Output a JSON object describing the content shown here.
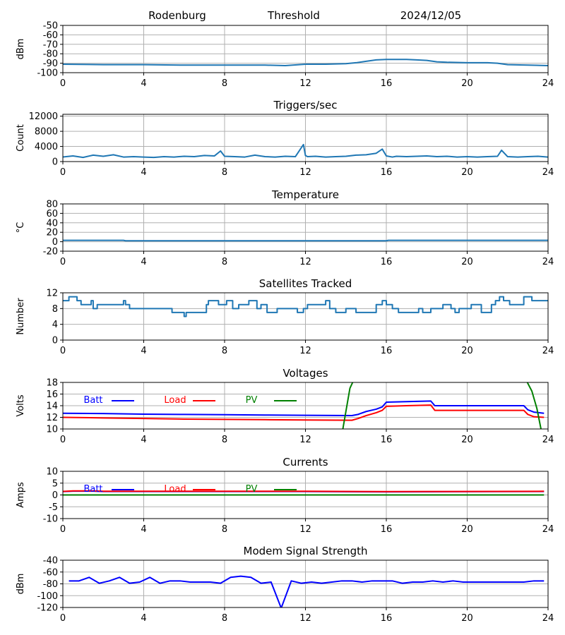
{
  "header": {
    "station": "Rodenburg",
    "plot_title": "Threshold",
    "date": "2024/12/05"
  },
  "x_ticks": [
    "0",
    "4",
    "8",
    "12",
    "16",
    "20",
    "24"
  ],
  "colors": {
    "series_default": "#1f77b4",
    "batt": "#0000ff",
    "load": "#ff0000",
    "pv": "#008000",
    "grid": "#b0b0b0",
    "axis": "#000000"
  },
  "chart_data": [
    {
      "id": "threshold",
      "type": "line",
      "title": "",
      "ylabel": "dBm",
      "xlim": [
        0,
        24
      ],
      "ylim": [
        -100,
        -50
      ],
      "yticks": [
        "-50",
        "-60",
        "-70",
        "-80",
        "-90",
        "-100"
      ],
      "grid": true,
      "series": [
        {
          "color_key": "series_default",
          "x": [
            0,
            2,
            4,
            6,
            8,
            10,
            11,
            12,
            13,
            14,
            14.5,
            15,
            15.5,
            16,
            16.5,
            17,
            17.5,
            18,
            18.5,
            19,
            20,
            21,
            21.5,
            22,
            23,
            24
          ],
          "y": [
            -91,
            -91.5,
            -91.5,
            -92,
            -92,
            -92,
            -92.5,
            -91,
            -91,
            -90.5,
            -89.5,
            -88,
            -86.5,
            -86,
            -86,
            -86,
            -86.5,
            -87,
            -88.5,
            -89,
            -89.5,
            -89.5,
            -90,
            -91.5,
            -92,
            -92.5
          ]
        }
      ]
    },
    {
      "id": "triggers",
      "type": "line",
      "title": "Triggers/sec",
      "ylabel": "Count",
      "xlim": [
        0,
        24
      ],
      "ylim": [
        0,
        12500
      ],
      "yticks": [
        "0",
        "4000",
        "8000",
        "12000"
      ],
      "ytick_values": [
        0,
        4000,
        8000,
        12000
      ],
      "grid": true,
      "series": [
        {
          "color_key": "series_default",
          "x": [
            0,
            0.5,
            1,
            1.5,
            2,
            2.5,
            3,
            3.5,
            4,
            4.5,
            5,
            5.5,
            6,
            6.5,
            7,
            7.5,
            7.8,
            8,
            8.5,
            9,
            9.5,
            10,
            10.5,
            11,
            11.5,
            11.9,
            12,
            12.1,
            12.5,
            13,
            13.5,
            14,
            14.5,
            15,
            15.5,
            15.8,
            16,
            16.3,
            16.5,
            17,
            17.5,
            18,
            18.5,
            19,
            19.5,
            20,
            20.5,
            21,
            21.5,
            21.7,
            22,
            22.5,
            23,
            23.5,
            24
          ],
          "y": [
            1200,
            1500,
            1100,
            1700,
            1400,
            1800,
            1200,
            1300,
            1200,
            1100,
            1300,
            1200,
            1400,
            1300,
            1600,
            1500,
            2800,
            1400,
            1300,
            1200,
            1700,
            1300,
            1200,
            1400,
            1300,
            4500,
            1600,
            1300,
            1400,
            1200,
            1300,
            1400,
            1700,
            1800,
            2200,
            3300,
            1500,
            1200,
            1400,
            1300,
            1400,
            1500,
            1300,
            1400,
            1200,
            1300,
            1200,
            1300,
            1400,
            3000,
            1300,
            1200,
            1300,
            1400,
            1200
          ]
        }
      ]
    },
    {
      "id": "temperature",
      "type": "line",
      "title": "Temperature",
      "ylabel": "°C",
      "xlim": [
        0,
        24
      ],
      "ylim": [
        -20,
        80
      ],
      "yticks": [
        "80",
        "60",
        "40",
        "20",
        "0",
        "-20"
      ],
      "grid": true,
      "series": [
        {
          "color_key": "series_default",
          "x": [
            0,
            3,
            3.1,
            16,
            16.1,
            23,
            23.1,
            24
          ],
          "y": [
            3,
            3,
            2,
            2,
            3,
            3,
            3,
            3
          ]
        }
      ]
    },
    {
      "id": "satellites",
      "type": "line",
      "title": "Satellites Tracked",
      "ylabel": "Number",
      "xlim": [
        0,
        24
      ],
      "ylim": [
        0,
        12
      ],
      "yticks": [
        "12",
        "8",
        "4",
        "0"
      ],
      "grid": true,
      "series": [
        {
          "color_key": "series_default",
          "step": true,
          "x": [
            0,
            0.3,
            0.7,
            0.9,
            1.4,
            1.5,
            1.7,
            1.8,
            3,
            3.1,
            3.3,
            4,
            5.4,
            5.9,
            6,
            6.1,
            6.5,
            7.1,
            7.2,
            7.7,
            8.1,
            8.4,
            8.7,
            9.2,
            9.6,
            9.8,
            10.1,
            10.6,
            11.6,
            11.9,
            12.1,
            13,
            13.2,
            13.5,
            14,
            14.5,
            15.5,
            15.8,
            16,
            16.3,
            16.6,
            17.6,
            17.8,
            18.2,
            18.8,
            19.2,
            19.4,
            19.6,
            20.2,
            20.7,
            21.2,
            21.4,
            21.6,
            21.8,
            22.1,
            22.8,
            23.2,
            23.4,
            24
          ],
          "y": [
            10,
            11,
            10,
            9,
            10,
            8,
            9,
            9,
            10,
            9,
            8,
            8,
            7,
            7,
            6,
            7,
            7,
            9,
            10,
            9,
            10,
            8,
            9,
            10,
            8,
            9,
            7,
            8,
            7,
            8,
            9,
            10,
            8,
            7,
            8,
            7,
            9,
            10,
            9,
            8,
            7,
            8,
            7,
            8,
            9,
            8,
            7,
            8,
            9,
            7,
            9,
            10,
            11,
            10,
            9,
            11,
            10,
            10,
            10
          ]
        }
      ]
    },
    {
      "id": "voltages",
      "type": "line",
      "title": "Voltages",
      "ylabel": "Volts",
      "xlim": [
        0,
        24
      ],
      "ylim": [
        10,
        18
      ],
      "yticks": [
        "18",
        "16",
        "14",
        "12",
        "10"
      ],
      "grid": true,
      "legend": [
        "Batt",
        "Load",
        "PV"
      ],
      "series": [
        {
          "name": "Batt",
          "color_key": "batt",
          "x": [
            0,
            2,
            4,
            6,
            8,
            10,
            12,
            14.3,
            14.6,
            15,
            15.5,
            15.8,
            16,
            17,
            18.2,
            18.4,
            19,
            20,
            22,
            22.8,
            23,
            23.3,
            23.8
          ],
          "y": [
            12.7,
            12.65,
            12.55,
            12.5,
            12.45,
            12.4,
            12.35,
            12.3,
            12.5,
            13,
            13.4,
            13.8,
            14.6,
            14.7,
            14.8,
            14,
            14,
            14,
            14,
            14,
            13.3,
            12.9,
            12.7
          ]
        },
        {
          "name": "Load",
          "color_key": "load",
          "x": [
            0,
            2,
            4,
            6,
            8,
            10,
            12,
            14.3,
            14.6,
            15,
            15.5,
            15.8,
            16,
            17,
            18.2,
            18.4,
            19,
            20,
            22,
            22.8,
            23,
            23.3,
            23.8
          ],
          "y": [
            12,
            11.9,
            11.8,
            11.7,
            11.65,
            11.6,
            11.55,
            11.5,
            11.8,
            12.3,
            12.8,
            13.2,
            13.9,
            14,
            14.1,
            13.2,
            13.2,
            13.2,
            13.2,
            13.2,
            12.5,
            12.1,
            12.0
          ]
        },
        {
          "name": "PV",
          "color_key": "pv",
          "segments": [
            {
              "x": [
                13.85,
                14.0,
                14.2,
                14.4
              ],
              "y": [
                10,
                13,
                17,
                18.5
              ]
            },
            {
              "x": [
                22.9,
                23.2,
                23.45,
                23.65
              ],
              "y": [
                18.5,
                16.5,
                13.5,
                10
              ]
            }
          ]
        }
      ]
    },
    {
      "id": "currents",
      "type": "line",
      "title": "Currents",
      "ylabel": "Amps",
      "xlim": [
        0,
        24
      ],
      "ylim": [
        -10,
        10
      ],
      "yticks": [
        "10",
        "5",
        "0",
        "-5",
        "-10"
      ],
      "grid": true,
      "legend": [
        "Batt",
        "Load",
        "PV"
      ],
      "series": [
        {
          "name": "Batt",
          "color_key": "batt",
          "x": [
            0,
            0.5,
            1.5,
            2,
            12,
            16,
            18,
            23.8
          ],
          "y": [
            1.4,
            1.6,
            1.6,
            1.45,
            1.45,
            1.3,
            1.35,
            1.45
          ]
        },
        {
          "name": "Load",
          "color_key": "load",
          "x": [
            0,
            0.5,
            1.5,
            2,
            12,
            16,
            18,
            23.8
          ],
          "y": [
            1.5,
            1.7,
            1.7,
            1.55,
            1.55,
            1.4,
            1.45,
            1.55
          ]
        },
        {
          "name": "PV",
          "color_key": "pv",
          "x": [
            0,
            23.8
          ],
          "y": [
            0,
            0
          ]
        }
      ]
    },
    {
      "id": "modem",
      "type": "line",
      "title": "Modem Signal Strength",
      "ylabel": "dBm",
      "xlim": [
        0,
        24
      ],
      "ylim": [
        -120,
        -40
      ],
      "yticks": [
        "-40",
        "-60",
        "-80",
        "-100",
        "-120"
      ],
      "grid": true,
      "series": [
        {
          "color_key": "batt",
          "x": [
            0.3,
            0.8,
            1.3,
            1.8,
            2.3,
            2.8,
            3.3,
            3.8,
            4.3,
            4.8,
            5.3,
            5.8,
            6.3,
            6.8,
            7.3,
            7.8,
            8.3,
            8.8,
            9.3,
            9.8,
            10.3,
            10.8,
            11.3,
            11.8,
            12.3,
            12.8,
            13.3,
            13.8,
            14.3,
            14.8,
            15.3,
            15.8,
            16.3,
            16.8,
            17.3,
            17.8,
            18.3,
            18.8,
            19.3,
            19.8,
            20.3,
            20.8,
            21.3,
            21.8,
            22.3,
            22.8,
            23.3,
            23.8
          ],
          "y": [
            -75,
            -75,
            -69,
            -79,
            -75,
            -69,
            -79,
            -77,
            -69,
            -79,
            -75,
            -75,
            -77,
            -77,
            -77,
            -79,
            -69,
            -67,
            -69,
            -79,
            -77,
            -121,
            -75,
            -79,
            -77,
            -79,
            -77,
            -75,
            -75,
            -77,
            -75,
            -75,
            -75,
            -79,
            -77,
            -77,
            -75,
            -77,
            -75,
            -77,
            -77,
            -77,
            -77,
            -77,
            -77,
            -77,
            -75,
            -75
          ]
        }
      ]
    }
  ]
}
